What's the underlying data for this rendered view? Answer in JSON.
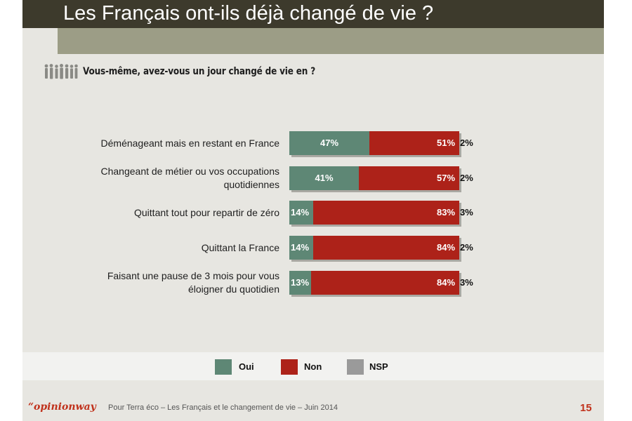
{
  "header": {
    "title": "Les Français ont-ils déjà changé de vie ?"
  },
  "question": {
    "text": "Vous-même, avez-vous un jour changé de vie en ?",
    "icon": "people-silhouettes-icon"
  },
  "chart_data": {
    "type": "bar",
    "orientation": "horizontal",
    "stacked": true,
    "categories": [
      "Déménageant mais en restant en France",
      "Changeant de métier ou vos occupations quotidiennes",
      "Quittant tout pour repartir de zéro",
      "Quittant la France",
      "Faisant une pause de 3 mois pour vous éloigner du quotidien"
    ],
    "series": [
      {
        "name": "Oui",
        "values": [
          47,
          41,
          14,
          14,
          13
        ],
        "color": "#5e8775"
      },
      {
        "name": "Non",
        "values": [
          51,
          57,
          83,
          84,
          84
        ],
        "color": "#ad2219"
      },
      {
        "name": "NSP",
        "values": [
          2,
          2,
          3,
          2,
          3
        ],
        "color": "#9a9a9a"
      }
    ],
    "value_suffix": "%",
    "legend_position": "bottom",
    "grid": false
  },
  "footer": {
    "brand": "“opinionway",
    "text": "Pour Terra éco – Les Français et le changement de vie – Juin 2014",
    "page_number": "15"
  }
}
